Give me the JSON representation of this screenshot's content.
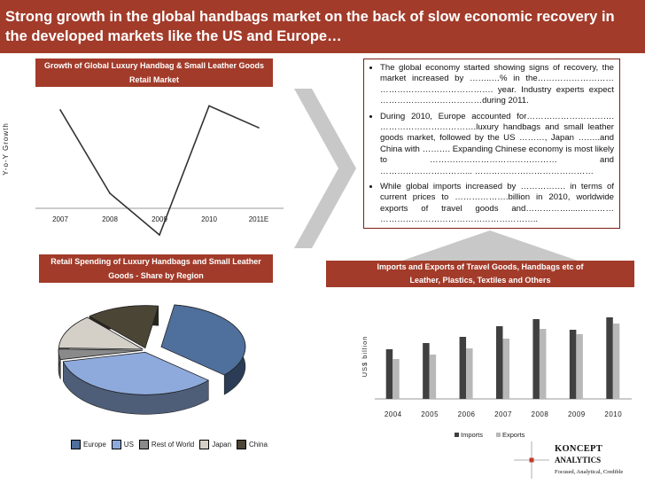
{
  "title": "Strong growth in the global handbags market on the back of slow economic recovery in the developed markets like the US and Europe…",
  "colors": {
    "header_red": "#a23b2a",
    "arrow_grey": "#c8c8c8"
  },
  "line_chart": {
    "header_line1": "Growth of Global Luxury Handbag & Small Leather Goods",
    "header_line2": "Retail Market",
    "ylabel": "Y-o-Y Growth",
    "chart_data": {
      "type": "line",
      "categories": [
        "2007",
        "2008",
        "2009",
        "2010",
        "2011E"
      ],
      "values": [
        0.84,
        0.0,
        -0.42,
        0.88,
        0.66
      ],
      "ylim": [
        -0.5,
        1.0
      ],
      "grid": false,
      "legend": "none"
    }
  },
  "pie_chart": {
    "header_line1": "Retail Spending of Luxury Handbags and Small Leather",
    "header_line2": "Goods - Share by Region",
    "chart_data": {
      "type": "pie",
      "labels": [
        "Europe",
        "US",
        "Rest of World",
        "Japan",
        "China"
      ],
      "values": [
        34,
        35,
        4,
        13,
        14
      ],
      "colors": [
        "#4f6f9c",
        "#8eaadc",
        "#8a8a8a",
        "#d4d0c8",
        "#4a4535"
      ],
      "legend": "bottom"
    },
    "legend_labels": [
      "Europe",
      "US",
      "Rest of World",
      "Japan",
      "China"
    ]
  },
  "bar_chart": {
    "header_line1": "Imports and Exports of Travel Goods, Handbags etc of",
    "header_line2": "Leather, Plastics, Textiles and Others",
    "ylabel": "US$ billion",
    "chart_data": {
      "type": "bar",
      "categories": [
        "2004",
        "2005",
        "2006",
        "2007",
        "2008",
        "2009",
        "2010"
      ],
      "series": [
        {
          "name": "Imports",
          "values": [
            56,
            63,
            70,
            82,
            90,
            78,
            92
          ],
          "color": "#404040"
        },
        {
          "name": "Exports",
          "values": [
            45,
            50,
            57,
            68,
            79,
            73,
            85
          ],
          "color": "#b8b8b8"
        }
      ],
      "ylim": [
        0,
        100
      ],
      "legend": "bottom"
    }
  },
  "bullets": [
    "The global economy started showing signs of recovery, the market increased by ……..…% in the……………………… …………………………………. year. Industry experts expect ………………………………during 2011.",
    "During 2010, Europe accounted for…………………………. …………………………….luxury handbags and small leather goods market, followed by the US ………, Japan ……..and China with ………. Expanding Chinese economy is most likely to ……………………………………… and …………………………... ……………………………………",
    "While global imports increased by ……………. in terms of current prices to ……………….billion in 2010, worldwide exports of travel goods and…………….....………… ……………………………………………….."
  ],
  "logo": {
    "name_line1": "KONCEPT",
    "name_line2": "ANALYTICS",
    "tagline": "Focused, Analytical, Credible"
  }
}
